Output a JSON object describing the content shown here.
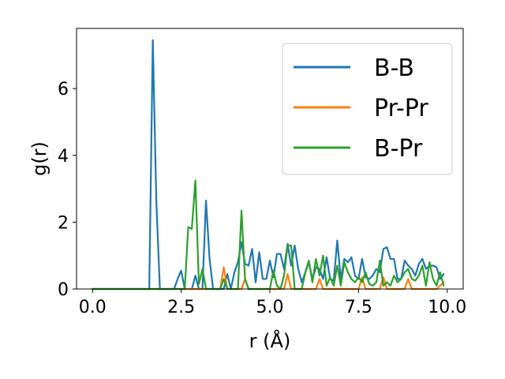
{
  "chart_data": {
    "type": "line",
    "xlabel": "r (Å)",
    "ylabel": "g(r)",
    "xlim": [
      -0.45,
      10.45
    ],
    "ylim": [
      0,
      7.8
    ],
    "xticks": [
      0.0,
      2.5,
      5.0,
      7.5,
      10.0
    ],
    "xtick_labels": [
      "0.0",
      "2.5",
      "5.0",
      "7.5",
      "10.0"
    ],
    "yticks": [
      0,
      2,
      4,
      6
    ],
    "ytick_labels": [
      "0",
      "2",
      "4",
      "6"
    ],
    "grid": false,
    "legend_position": "top-right",
    "x": [
      0,
      0.1,
      0.2,
      0.3,
      0.4,
      0.5,
      0.6,
      0.7,
      0.8,
      0.9,
      1.0,
      1.1,
      1.2,
      1.3,
      1.4,
      1.5,
      1.6,
      1.7,
      1.8,
      1.9,
      2.0,
      2.1,
      2.2,
      2.3,
      2.4,
      2.5,
      2.6,
      2.7,
      2.8,
      2.9,
      3.0,
      3.1,
      3.2,
      3.3,
      3.4,
      3.5,
      3.6,
      3.7,
      3.8,
      3.9,
      4.0,
      4.1,
      4.2,
      4.3,
      4.4,
      4.5,
      4.6,
      4.7,
      4.8,
      4.9,
      5.0,
      5.1,
      5.2,
      5.3,
      5.4,
      5.5,
      5.6,
      5.7,
      5.8,
      5.9,
      6.0,
      6.1,
      6.2,
      6.3,
      6.4,
      6.5,
      6.6,
      6.7,
      6.8,
      6.9,
      7.0,
      7.1,
      7.2,
      7.3,
      7.4,
      7.5,
      7.6,
      7.7,
      7.8,
      7.9,
      8.0,
      8.1,
      8.2,
      8.3,
      8.4,
      8.5,
      8.6,
      8.7,
      8.8,
      8.9,
      9.0,
      9.1,
      9.2,
      9.3,
      9.4,
      9.5,
      9.6,
      9.7,
      9.8,
      9.9
    ],
    "series": [
      {
        "name": "B-B",
        "color": "#1f77b4",
        "values": [
          0,
          0,
          0,
          0,
          0,
          0,
          0,
          0,
          0,
          0,
          0,
          0,
          0,
          0,
          0,
          0,
          0,
          7.45,
          2.6,
          0,
          0,
          0,
          0,
          0,
          0.3,
          0.55,
          0,
          0,
          0,
          0.4,
          0,
          0,
          2.65,
          0.9,
          0,
          0,
          0,
          0,
          0.45,
          0,
          0.5,
          0.8,
          1.4,
          0.75,
          0.7,
          1.2,
          0.2,
          1.1,
          0.3,
          0.3,
          0.85,
          0.35,
          1.05,
          1.05,
          0.6,
          1.35,
          0.7,
          1.3,
          0.6,
          0.2,
          0.5,
          0.8,
          0.3,
          0.65,
          0.6,
          0.3,
          0.95,
          0.3,
          0.25,
          1.45,
          0.3,
          0.9,
          0.8,
          0.95,
          0.4,
          0.3,
          0.9,
          0.35,
          0.3,
          0.4,
          0.6,
          0.5,
          1.2,
          1.25,
          0.9,
          0.9,
          0.3,
          0.3,
          0.85,
          0.7,
          0.6,
          0.4,
          0.75,
          0.9,
          0.6,
          0.7,
          0.7,
          0.65,
          0.3,
          0.45
        ]
      },
      {
        "name": "Pr-Pr",
        "color": "#ff7f0e",
        "values": [
          0,
          0,
          0,
          0,
          0,
          0,
          0,
          0,
          0,
          0,
          0,
          0,
          0,
          0,
          0,
          0,
          0,
          0,
          0,
          0,
          0,
          0,
          0,
          0,
          0,
          0,
          0,
          0,
          0,
          0,
          0,
          0,
          0,
          0,
          0,
          0,
          0,
          0.65,
          0,
          0,
          0,
          0,
          0,
          0.3,
          0,
          0,
          0,
          0,
          0,
          0,
          0,
          0,
          0,
          0,
          0,
          0.45,
          0,
          0,
          0,
          0,
          0,
          0,
          0,
          0,
          0.3,
          0,
          0,
          0,
          0,
          0,
          0,
          0,
          0,
          0,
          0,
          0,
          0.35,
          0,
          0,
          0,
          0,
          0,
          0.35,
          0,
          0,
          0,
          0,
          0,
          0,
          0.3,
          0,
          0,
          0,
          0,
          0,
          0,
          0,
          0,
          0.1,
          0.2
        ]
      },
      {
        "name": "B-Pr",
        "color": "#2ca02c",
        "values": [
          0,
          0,
          0,
          0,
          0,
          0,
          0,
          0,
          0,
          0,
          0,
          0,
          0,
          0,
          0,
          0,
          0,
          0,
          0,
          0,
          0,
          0,
          0,
          0,
          0,
          0,
          0,
          1.85,
          1.8,
          3.25,
          0.15,
          0.6,
          0,
          0,
          0,
          0,
          0,
          0.3,
          0,
          0,
          0,
          0,
          2.35,
          0.3,
          0,
          0,
          0,
          0,
          0,
          0,
          0,
          0.55,
          0.1,
          0,
          0.4,
          1.3,
          1.3,
          0,
          0,
          0,
          0.5,
          0.85,
          0.2,
          0.9,
          0.4,
          1.0,
          0.1,
          0.35,
          0.1,
          0.7,
          0.1,
          0.8,
          0.5,
          0.3,
          0.2,
          0.35,
          0.2,
          0.5,
          0.15,
          0.1,
          0.2,
          0.85,
          0.1,
          0.2,
          0.1,
          0.4,
          0.2,
          0.3,
          0.5,
          0.6,
          0.3,
          0.25,
          0.4,
          0.7,
          0.1,
          0.8,
          0.3,
          0.1,
          0.5,
          0.1
        ]
      }
    ]
  }
}
